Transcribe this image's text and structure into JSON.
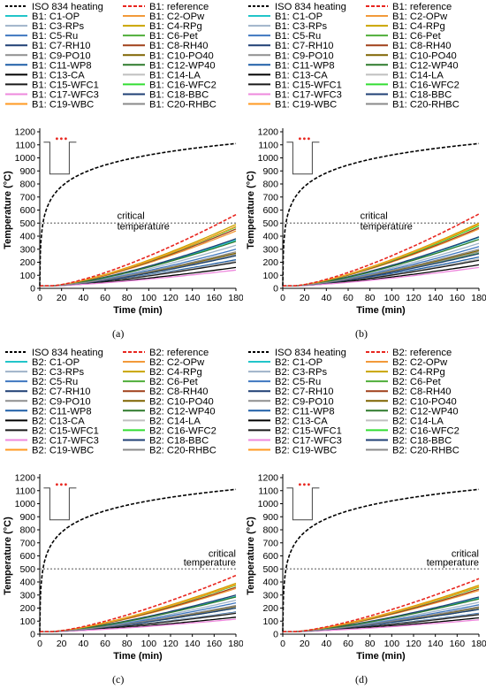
{
  "legend_common": {
    "iso": "ISO 834 heating",
    "series_codes": [
      "C1-OP",
      "C2-OPw",
      "C3-RPs",
      "C4-RPg",
      "C5-Ru",
      "C6-Pet",
      "C7-RH10",
      "C8-RH40",
      "C9-PO10",
      "C10-PO40",
      "C11-WP8",
      "C12-WP40",
      "C13-CA",
      "C14-LA",
      "C15-WFC1",
      "C16-WFC2",
      "C17-WFC3",
      "C18-BBC",
      "C19-WBC",
      "C20-RHBC"
    ]
  },
  "colors": {
    "iso": "#000000",
    "reference": "#e8261f",
    "series": [
      "#22c5c9",
      "#f29a3a",
      "#9fb3c9",
      "#c9a400",
      "#3f77c0",
      "#4fae3a",
      "#1f3f74",
      "#a0401a",
      "#8f8f8f",
      "#7f6400",
      "#1f5fa7",
      "#2d7a2c",
      "#000000",
      "#bfbfbf",
      "#1a1a1a",
      "#33dd33",
      "#ee88dd",
      "#1f3f74",
      "#ff9a22",
      "#8a8a8a"
    ],
    "critical": "#8c8c8c"
  },
  "chart_data": [
    {
      "type": "line",
      "panel_label": "(a)",
      "slab": "B1",
      "reference_label": "B1: reference",
      "xlabel": "Time (min)",
      "ylabel": "Temperature (°C)",
      "xlim": [
        0,
        180
      ],
      "ylim": [
        0,
        1200
      ],
      "xticks": [
        0,
        20,
        40,
        60,
        80,
        100,
        120,
        140,
        160,
        180
      ],
      "yticks": [
        0,
        100,
        200,
        300,
        400,
        500,
        600,
        700,
        800,
        900,
        1000,
        1100,
        1200
      ],
      "critical_temperature": 500,
      "critical_label": [
        "critical",
        "temperature"
      ],
      "reference_end": 565,
      "series_end": [
        370,
        440,
        330,
        490,
        300,
        250,
        380,
        455,
        260,
        270,
        220,
        360,
        160,
        210,
        200,
        470,
        140,
        250,
        475,
        280
      ]
    },
    {
      "type": "line",
      "panel_label": "(b)",
      "slab": "B1",
      "reference_label": "B1: reference",
      "xlabel": "Time (min)",
      "ylabel": "Temperature (°C)",
      "xlim": [
        0,
        180
      ],
      "ylim": [
        0,
        1200
      ],
      "xticks": [
        0,
        20,
        40,
        60,
        80,
        100,
        120,
        140,
        160,
        180
      ],
      "yticks": [
        0,
        100,
        200,
        300,
        400,
        500,
        600,
        700,
        800,
        900,
        1000,
        1100,
        1200
      ],
      "critical_temperature": 500,
      "critical_label": [
        "critical",
        "temperature"
      ],
      "reference_end": 570,
      "series_end": [
        390,
        455,
        345,
        500,
        320,
        270,
        395,
        465,
        280,
        290,
        240,
        375,
        180,
        225,
        215,
        480,
        160,
        265,
        490,
        300
      ]
    },
    {
      "type": "line",
      "panel_label": "(c)",
      "slab": "B2",
      "reference_label": "B2: reference",
      "xlabel": "Time (min)",
      "ylabel": "Temperature (°C)",
      "xlim": [
        0,
        180
      ],
      "ylim": [
        0,
        1200
      ],
      "xticks": [
        0,
        20,
        40,
        60,
        80,
        100,
        120,
        140,
        160,
        180
      ],
      "yticks": [
        0,
        100,
        200,
        300,
        400,
        500,
        600,
        700,
        800,
        900,
        1000,
        1100,
        1200
      ],
      "critical_temperature": 500,
      "critical_label": [
        "critical",
        "temperature"
      ],
      "reference_end": 450,
      "series_end": [
        290,
        350,
        260,
        390,
        240,
        200,
        300,
        360,
        210,
        215,
        170,
        285,
        130,
        165,
        160,
        375,
        115,
        200,
        380,
        220
      ]
    },
    {
      "type": "line",
      "panel_label": "(d)",
      "slab": "B2",
      "reference_label": "B2: reference",
      "xlabel": "Time (min)",
      "ylabel": "Temperature (°C)",
      "xlim": [
        0,
        180
      ],
      "ylim": [
        0,
        1200
      ],
      "xticks": [
        0,
        20,
        40,
        60,
        80,
        100,
        120,
        140,
        160,
        180
      ],
      "yticks": [
        0,
        100,
        200,
        300,
        400,
        500,
        600,
        700,
        800,
        900,
        1000,
        1100,
        1200
      ],
      "critical_temperature": 500,
      "critical_label": [
        "critical",
        "temperature"
      ],
      "reference_end": 425,
      "series_end": [
        275,
        335,
        245,
        375,
        225,
        190,
        285,
        345,
        200,
        205,
        160,
        270,
        125,
        155,
        150,
        360,
        110,
        190,
        365,
        210
      ]
    }
  ]
}
